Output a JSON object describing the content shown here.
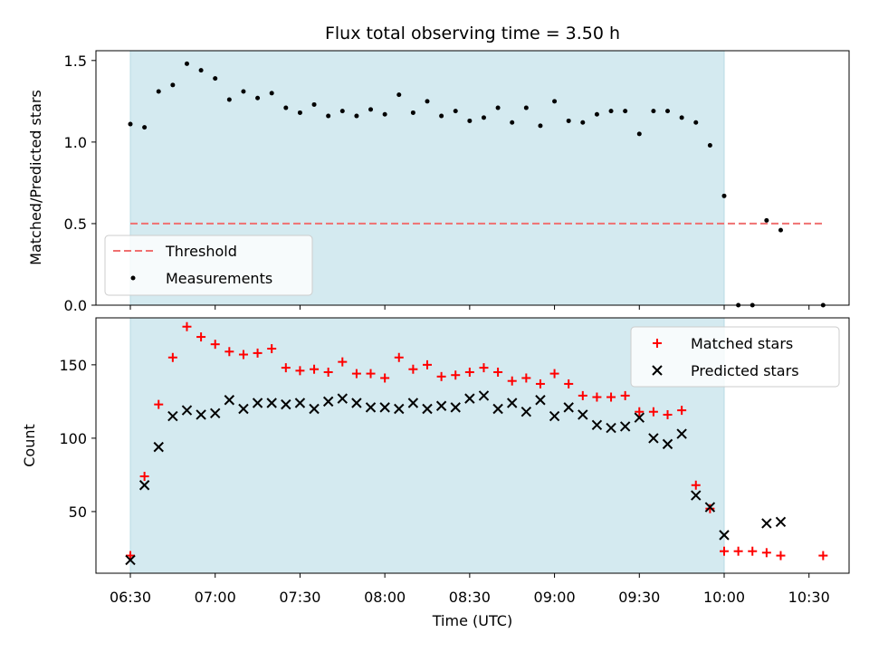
{
  "chart_data": [
    {
      "type": "scatter",
      "title": "Flux total observing time = 3.50 h",
      "ylabel": "Matched/Predicted stars",
      "xlabel": "",
      "ylim": [
        0,
        1.56
      ],
      "yticks": [
        "0.0",
        "0.5",
        "1.0",
        "1.5"
      ],
      "ytick_values": [
        0,
        0.5,
        1.0,
        1.5
      ],
      "grid": false,
      "legend_position": "bottom-left",
      "observing_window": {
        "start": "06:30",
        "end": "10:00",
        "color": "#d4eaf0"
      },
      "threshold": {
        "name": "Threshold",
        "value": 0.5,
        "x_start": "06:30",
        "x_end": "10:35",
        "color": "#f07070"
      },
      "series": [
        {
          "name": "Measurements",
          "color": "#000000",
          "points": [
            [
              "06:30",
              1.11
            ],
            [
              "06:35",
              1.09
            ],
            [
              "06:40",
              1.31
            ],
            [
              "06:45",
              1.35
            ],
            [
              "06:50",
              1.48
            ],
            [
              "06:55",
              1.44
            ],
            [
              "07:00",
              1.39
            ],
            [
              "07:05",
              1.26
            ],
            [
              "07:10",
              1.31
            ],
            [
              "07:15",
              1.27
            ],
            [
              "07:20",
              1.3
            ],
            [
              "07:25",
              1.21
            ],
            [
              "07:30",
              1.18
            ],
            [
              "07:35",
              1.23
            ],
            [
              "07:40",
              1.16
            ],
            [
              "07:45",
              1.19
            ],
            [
              "07:50",
              1.16
            ],
            [
              "07:55",
              1.2
            ],
            [
              "08:00",
              1.17
            ],
            [
              "08:05",
              1.29
            ],
            [
              "08:10",
              1.18
            ],
            [
              "08:15",
              1.25
            ],
            [
              "08:20",
              1.16
            ],
            [
              "08:25",
              1.19
            ],
            [
              "08:30",
              1.13
            ],
            [
              "08:35",
              1.15
            ],
            [
              "08:40",
              1.21
            ],
            [
              "08:45",
              1.12
            ],
            [
              "08:50",
              1.21
            ],
            [
              "08:55",
              1.1
            ],
            [
              "09:00",
              1.25
            ],
            [
              "09:05",
              1.13
            ],
            [
              "09:10",
              1.12
            ],
            [
              "09:15",
              1.17
            ],
            [
              "09:20",
              1.19
            ],
            [
              "09:25",
              1.19
            ],
            [
              "09:30",
              1.05
            ],
            [
              "09:35",
              1.19
            ],
            [
              "09:40",
              1.19
            ],
            [
              "09:45",
              1.15
            ],
            [
              "09:50",
              1.12
            ],
            [
              "09:55",
              0.98
            ],
            [
              "10:00",
              0.67
            ],
            [
              "10:05",
              0.0
            ],
            [
              "10:10",
              0.0
            ],
            [
              "10:15",
              0.52
            ],
            [
              "10:20",
              0.46
            ],
            [
              "10:35",
              0.0
            ]
          ]
        }
      ]
    },
    {
      "type": "scatter",
      "title": "",
      "ylabel": "Count",
      "xlabel": "Time (UTC)",
      "ylim": [
        8,
        182
      ],
      "yticks": [
        "50",
        "100",
        "150"
      ],
      "ytick_values": [
        50,
        100,
        150
      ],
      "xticks": [
        "06:30",
        "07:00",
        "07:30",
        "08:00",
        "08:30",
        "09:00",
        "09:30",
        "10:00",
        "10:30"
      ],
      "grid": false,
      "legend_position": "top-right",
      "observing_window": {
        "start": "06:30",
        "end": "10:00",
        "color": "#d4eaf0"
      },
      "series": [
        {
          "name": "Matched stars",
          "marker": "plus",
          "color": "#ff0000",
          "points": [
            [
              "06:30",
              20
            ],
            [
              "06:35",
              74
            ],
            [
              "06:40",
              123
            ],
            [
              "06:45",
              155
            ],
            [
              "06:50",
              176
            ],
            [
              "06:55",
              169
            ],
            [
              "07:00",
              164
            ],
            [
              "07:05",
              159
            ],
            [
              "07:10",
              157
            ],
            [
              "07:15",
              158
            ],
            [
              "07:20",
              161
            ],
            [
              "07:25",
              148
            ],
            [
              "07:30",
              146
            ],
            [
              "07:35",
              147
            ],
            [
              "07:40",
              145
            ],
            [
              "07:45",
              152
            ],
            [
              "07:50",
              144
            ],
            [
              "07:55",
              144
            ],
            [
              "08:00",
              141
            ],
            [
              "08:05",
              155
            ],
            [
              "08:10",
              147
            ],
            [
              "08:15",
              150
            ],
            [
              "08:20",
              142
            ],
            [
              "08:25",
              143
            ],
            [
              "08:30",
              145
            ],
            [
              "08:35",
              148
            ],
            [
              "08:40",
              145
            ],
            [
              "08:45",
              139
            ],
            [
              "08:50",
              141
            ],
            [
              "08:55",
              137
            ],
            [
              "09:00",
              144
            ],
            [
              "09:05",
              137
            ],
            [
              "09:10",
              129
            ],
            [
              "09:15",
              128
            ],
            [
              "09:20",
              128
            ],
            [
              "09:25",
              129
            ],
            [
              "09:30",
              118
            ],
            [
              "09:35",
              118
            ],
            [
              "09:40",
              116
            ],
            [
              "09:45",
              119
            ],
            [
              "09:50",
              68
            ],
            [
              "09:55",
              52
            ],
            [
              "10:00",
              23
            ],
            [
              "10:05",
              23
            ],
            [
              "10:10",
              23
            ],
            [
              "10:15",
              22
            ],
            [
              "10:20",
              20
            ],
            [
              "10:35",
              20
            ]
          ]
        },
        {
          "name": "Predicted stars",
          "marker": "x",
          "color": "#000000",
          "points": [
            [
              "06:30",
              17
            ],
            [
              "06:35",
              68
            ],
            [
              "06:40",
              94
            ],
            [
              "06:45",
              115
            ],
            [
              "06:50",
              119
            ],
            [
              "06:55",
              116
            ],
            [
              "07:00",
              117
            ],
            [
              "07:05",
              126
            ],
            [
              "07:10",
              120
            ],
            [
              "07:15",
              124
            ],
            [
              "07:20",
              124
            ],
            [
              "07:25",
              123
            ],
            [
              "07:30",
              124
            ],
            [
              "07:35",
              120
            ],
            [
              "07:40",
              125
            ],
            [
              "07:45",
              127
            ],
            [
              "07:50",
              124
            ],
            [
              "07:55",
              121
            ],
            [
              "08:00",
              121
            ],
            [
              "08:05",
              120
            ],
            [
              "08:10",
              124
            ],
            [
              "08:15",
              120
            ],
            [
              "08:20",
              122
            ],
            [
              "08:25",
              121
            ],
            [
              "08:30",
              127
            ],
            [
              "08:35",
              129
            ],
            [
              "08:40",
              120
            ],
            [
              "08:45",
              124
            ],
            [
              "08:50",
              118
            ],
            [
              "08:55",
              126
            ],
            [
              "09:00",
              115
            ],
            [
              "09:05",
              121
            ],
            [
              "09:10",
              116
            ],
            [
              "09:15",
              109
            ],
            [
              "09:20",
              107
            ],
            [
              "09:25",
              108
            ],
            [
              "09:30",
              114
            ],
            [
              "09:35",
              100
            ],
            [
              "09:40",
              96
            ],
            [
              "09:45",
              103
            ],
            [
              "09:50",
              61
            ],
            [
              "09:55",
              53
            ],
            [
              "10:00",
              34
            ],
            [
              "10:15",
              42
            ],
            [
              "10:20",
              43
            ]
          ]
        }
      ]
    }
  ]
}
